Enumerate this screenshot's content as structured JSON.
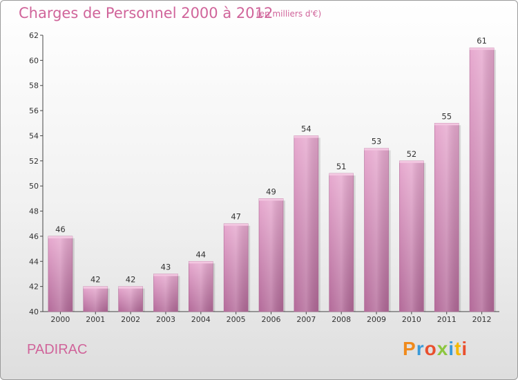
{
  "header": {
    "title": "Charges de Personnel 2000 à 2012",
    "subtitle": "(en milliers d'€)"
  },
  "footer": {
    "location": "PADIRAC",
    "logo_letters": [
      "P",
      "r",
      "o",
      "x",
      "i",
      "t",
      "i"
    ],
    "logo_colors": [
      "#f08a1c",
      "#3a9ad9",
      "#e94f2e",
      "#8cc63f",
      "#3a9ad9",
      "#f5b800",
      "#e94f2e"
    ]
  },
  "chart_data": {
    "type": "bar",
    "title": "Charges de Personnel 2000 à 2012",
    "subtitle": "(en milliers d'€)",
    "categories": [
      "2000",
      "2001",
      "2002",
      "2003",
      "2004",
      "2005",
      "2006",
      "2007",
      "2008",
      "2009",
      "2010",
      "2011",
      "2012"
    ],
    "values": [
      46,
      42,
      42,
      43,
      44,
      47,
      49,
      54,
      51,
      53,
      52,
      55,
      61
    ],
    "ylim": [
      40,
      62
    ],
    "yticks": [
      40,
      42,
      44,
      46,
      48,
      50,
      52,
      54,
      56,
      58,
      60,
      62
    ],
    "bar_color": "#cf7fb0",
    "grid": false
  }
}
